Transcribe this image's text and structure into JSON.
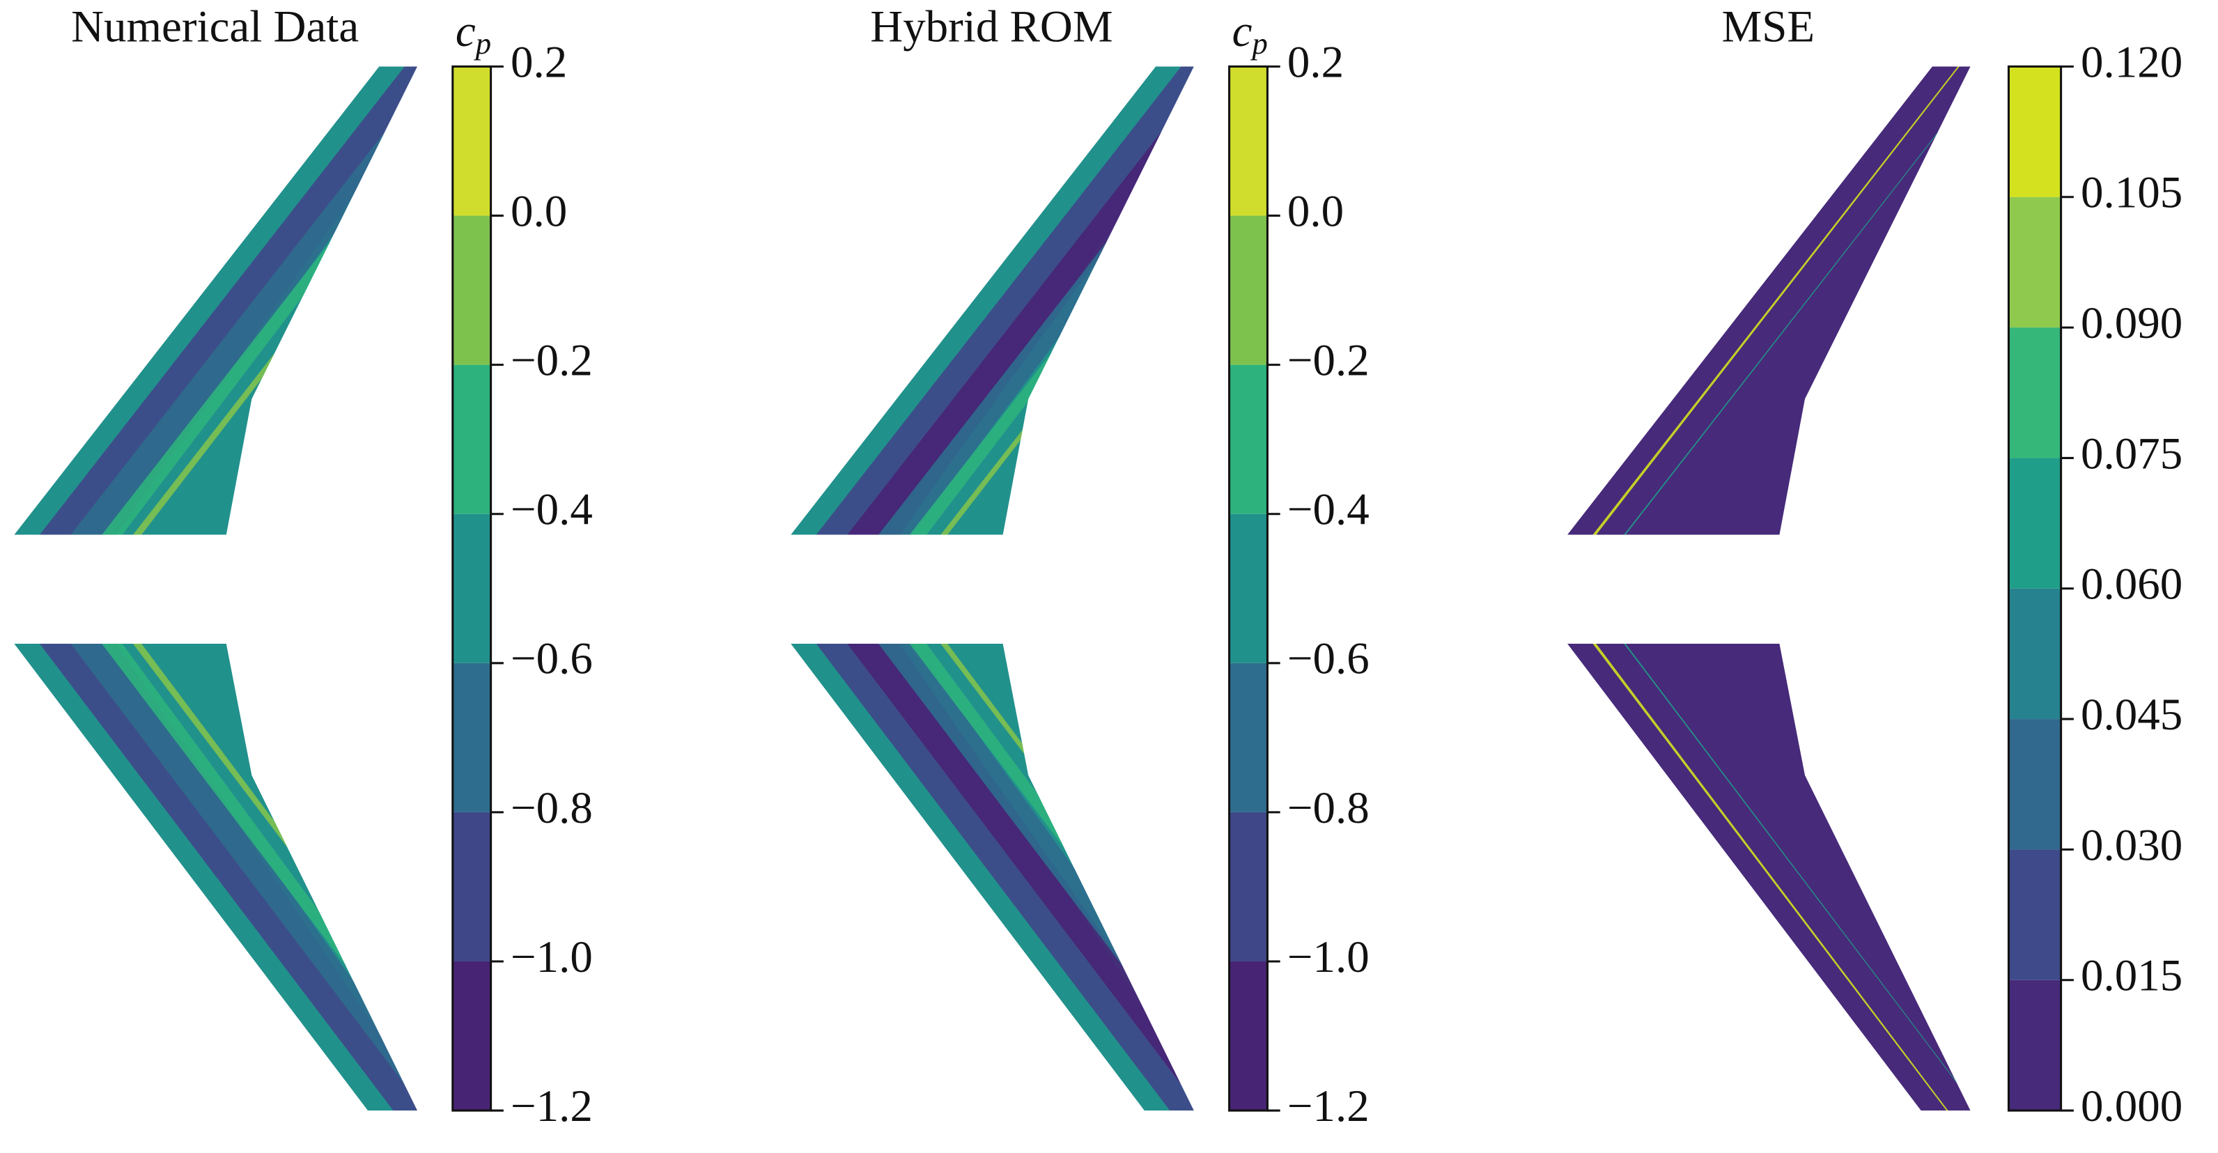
{
  "chart_data": [
    {
      "type": "contour",
      "title": "Numerical Data",
      "colorbar_label": "c",
      "colorbar_label_subscript": "p",
      "zlim": [
        -1.2,
        0.2
      ],
      "zticks": [
        {
          "value": -1.2,
          "label": "−1.2"
        },
        {
          "value": -1.0,
          "label": "−1.0"
        },
        {
          "value": -0.8,
          "label": "−0.8"
        },
        {
          "value": -0.6,
          "label": "−0.6"
        },
        {
          "value": -0.4,
          "label": "−0.4"
        },
        {
          "value": -0.2,
          "label": "−0.2"
        },
        {
          "value": 0,
          "label": "0.0"
        },
        0.2
      ],
      "colors": [
        "#482475",
        "#3f4788",
        "#2e6d8e",
        "#21918c",
        "#2db27d",
        "#7ec24e",
        "#d0dd2c"
      ]
    },
    {
      "type": "contour",
      "title": "Hybrid ROM",
      "colorbar_label": "c",
      "colorbar_label_subscript": "p",
      "zlim": [
        -1.2,
        0.2
      ],
      "zticks": [
        {
          "value": -1.2,
          "label": "−1.2"
        },
        {
          "value": -1.0,
          "label": "−1.0"
        },
        {
          "value": -0.8,
          "label": "−0.8"
        },
        {
          "value": -0.6,
          "label": "−0.6"
        },
        {
          "value": -0.4,
          "label": "−0.4"
        },
        {
          "value": -0.2,
          "label": "−0.2"
        },
        {
          "value": 0,
          "label": "0.0"
        },
        0.2
      ],
      "colors": [
        "#482475",
        "#3f4788",
        "#2e6d8e",
        "#21918c",
        "#2db27d",
        "#7ec24e",
        "#d0dd2c"
      ]
    },
    {
      "type": "contour",
      "title": "MSE",
      "zlim": [
        0,
        0.12
      ],
      "zticks": [
        {
          "value": 0,
          "label": "0.000"
        },
        {
          "value": 0.015,
          "label": "0.015"
        },
        {
          "value": 0.03,
          "label": "0.030"
        },
        {
          "value": 0.045,
          "label": "0.045"
        },
        {
          "value": 0.06,
          "label": "0.060"
        },
        {
          "value": 0.075,
          "label": "0.075"
        },
        {
          "value": 0.09,
          "label": "0.090"
        },
        {
          "value": 0.105,
          "label": "0.105"
        },
        {
          "value": 0.12,
          "label": "0.120"
        }
      ],
      "colors": [
        "#472a7a",
        "#3e4a89",
        "#31688e",
        "#26828e",
        "#1f9e89",
        "#35b779",
        "#8fca4e",
        "#d3e11f"
      ]
    }
  ]
}
